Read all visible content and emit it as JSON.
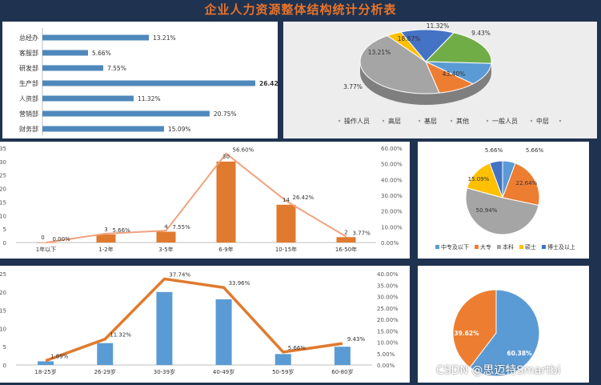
{
  "title": "企业人力资源整体结构统计分析表",
  "watermark": "CSDN @思迈特Smartbi",
  "colors": {
    "blue": "#4f88bb",
    "orange": "#e07a2e",
    "salmon": "#f0a37e",
    "gray": "#a5a5a5",
    "yellow": "#ffc000",
    "navy": "#4472c4",
    "green": "#70ad47"
  },
  "chart_data": [
    {
      "type": "bar",
      "orientation": "horizontal",
      "categories": [
        "总经办",
        "客服部",
        "研发部",
        "生产部",
        "人资部",
        "营销部",
        "财务部"
      ],
      "values": [
        13.21,
        5.66,
        7.55,
        26.42,
        11.32,
        20.75,
        15.09
      ],
      "labels": [
        "13.21%",
        "5.66%",
        "7.55%",
        "26.42%",
        "11.32%",
        "20.75%",
        "15.09%"
      ],
      "bold_index": 3
    },
    {
      "type": "pie",
      "style": "3d",
      "slices": [
        {
          "name": "操作人员",
          "value": 43.4,
          "label": "43.40%",
          "color": "#a5a5a5"
        },
        {
          "name": "高层",
          "value": 3.77,
          "label": "3.77%",
          "color": "#ffc000"
        },
        {
          "name": "基层",
          "value": 13.21,
          "label": "13.21%",
          "color": "#4472c4"
        },
        {
          "name": "其他",
          "value": 18.87,
          "label": "18.87%",
          "color": "#70ad47"
        },
        {
          "name": "一般人员",
          "value": 11.32,
          "label": "11.32%",
          "color": "#5b9bd5"
        },
        {
          "name": "中层",
          "value": 9.43,
          "label": "9.43%",
          "color": "#ed7d31"
        }
      ],
      "legend": [
        "操作人员",
        "高层",
        "基层",
        "其他",
        "一般人员",
        "中层"
      ]
    },
    {
      "type": "bar+line",
      "x_label_name": "工龄",
      "categories": [
        "1年以下",
        "1-2年",
        "3-5年",
        "6-9年",
        "10-15年",
        "16-50年"
      ],
      "bars": [
        0,
        3,
        4,
        30,
        14,
        2
      ],
      "line": [
        0.0,
        5.66,
        7.55,
        56.6,
        26.42,
        3.77
      ],
      "line_labels": [
        "0.00%",
        "5.66%",
        "7.55%",
        "56.60%",
        "26.42%",
        "3.77%"
      ],
      "ylim_left": [
        0,
        35
      ],
      "yticks_left": [
        "0",
        "5",
        "10",
        "15",
        "20",
        "25",
        "30",
        "35"
      ],
      "ylim_right": [
        0,
        60
      ],
      "yticks_right": [
        "0.00%",
        "10.00%",
        "20.00%",
        "30.00%",
        "40.00%",
        "50.00%",
        "60.00%"
      ]
    },
    {
      "type": "pie",
      "slices": [
        {
          "name": "中专及以下",
          "value": 5.66,
          "label": "5.66%",
          "color": "#5b9bd5"
        },
        {
          "name": "大专",
          "value": 22.64,
          "label": "22.64%",
          "color": "#ed7d31"
        },
        {
          "name": "本科",
          "value": 50.94,
          "label": "50.94%",
          "color": "#a5a5a5"
        },
        {
          "name": "硕士",
          "value": 15.09,
          "label": "15.09%",
          "color": "#ffc000"
        },
        {
          "name": "博士及以上",
          "value": 5.66,
          "label": "5.66%",
          "color": "#4472c4"
        }
      ],
      "legend": [
        "中专及以下",
        "大专",
        "本科",
        "硕士",
        "博士及以上"
      ]
    },
    {
      "type": "bar+line",
      "categories": [
        "18-25岁",
        "26-29岁",
        "30-39岁",
        "40-49岁",
        "50-59岁",
        "60-80岁"
      ],
      "bars": [
        1,
        6,
        20,
        18,
        3,
        5
      ],
      "line": [
        1.89,
        11.32,
        37.74,
        33.96,
        5.66,
        9.43
      ],
      "line_labels": [
        "1.89%",
        "11.32%",
        "37.74%",
        "33.96%",
        "5.66%",
        "9.43%"
      ],
      "ylim_left": [
        0,
        25
      ],
      "yticks_left": [
        "0",
        "5",
        "10",
        "15",
        "20",
        "25"
      ],
      "ylim_right": [
        0,
        40
      ],
      "yticks_right": [
        "0.00%",
        "5.00%",
        "10.00%",
        "15.00%",
        "20.00%",
        "25.00%",
        "30.00%",
        "35.00%",
        "40.00%"
      ]
    },
    {
      "type": "pie",
      "slices": [
        {
          "name": "男",
          "value": 60.38,
          "label": "60.38%",
          "color": "#5b9bd5"
        },
        {
          "name": "女",
          "value": 39.62,
          "label": "39.62%",
          "color": "#ed7d31"
        }
      ]
    }
  ]
}
